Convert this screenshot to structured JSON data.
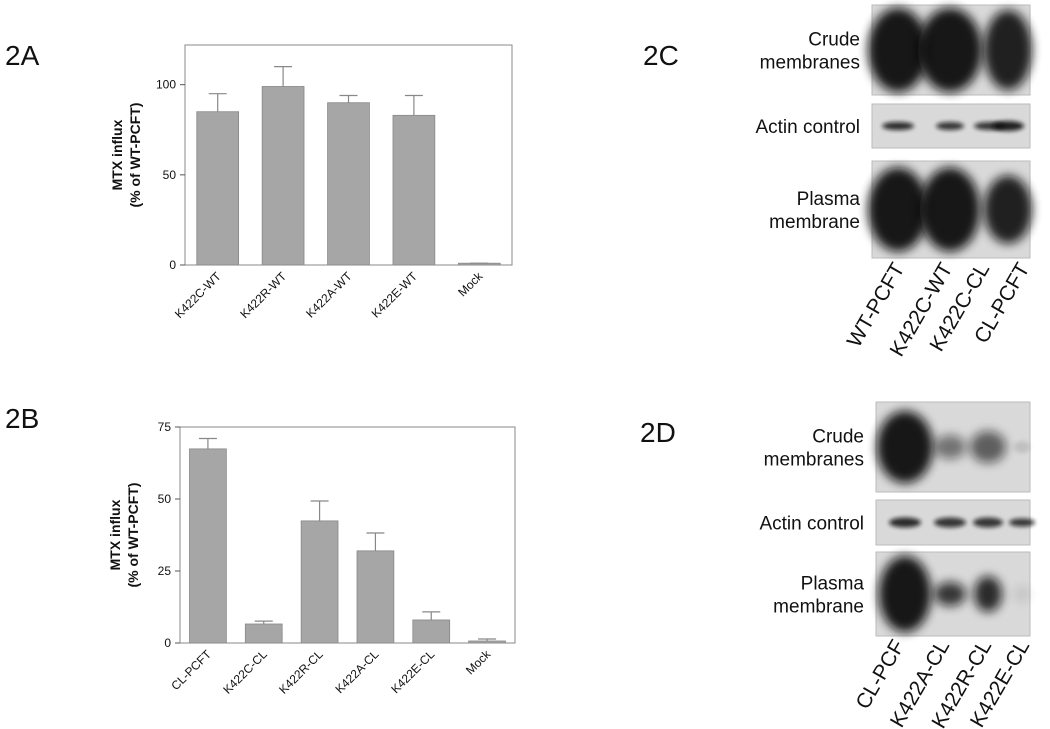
{
  "chart_data": [
    {
      "type": "bar",
      "panel": "2A",
      "y_label": [
        "MTX influx",
        "(% of WT-PCFT)"
      ],
      "categories": [
        "K422C-WT",
        "K422R-WT",
        "K422A-WT",
        "K422E-WT",
        "Mock"
      ],
      "values": [
        85,
        99,
        90,
        83,
        1
      ],
      "errors": [
        10,
        11,
        4,
        11,
        0
      ],
      "color": "#a6a6a6",
      "ylim": [
        0,
        122
      ],
      "yticks": [
        0,
        50,
        100
      ]
    },
    {
      "type": "bar",
      "panel": "2B",
      "y_label": [
        "MTX influx",
        "(% of WT-PCFT)"
      ],
      "categories": [
        "CL-PCFT",
        "K422C-CL",
        "K422R-CL",
        "K422A-CL",
        "K422E-CL",
        "Mock"
      ],
      "values": [
        67.4,
        6.6,
        42.4,
        32,
        8,
        0.7
      ],
      "errors": [
        3.6,
        1,
        6.9,
        6.2,
        2.8,
        0.7
      ],
      "color": "#a6a6a6",
      "ylim": [
        0,
        75
      ],
      "yticks": [
        0,
        25,
        50,
        75
      ]
    }
  ],
  "blots": [
    {
      "panel": "2C",
      "rows": [
        [
          "Crude",
          "membranes"
        ],
        [
          "Actin control"
        ],
        [
          "Plasma",
          "membrane"
        ]
      ],
      "lanes": [
        "WT-PCFT",
        "K422C-WT",
        "K422C-CL",
        "CL-PCFT"
      ]
    },
    {
      "panel": "2D",
      "rows": [
        [
          "Crude",
          "membranes"
        ],
        [
          "Actin control"
        ],
        [
          "Plasma",
          "membrane"
        ]
      ],
      "lanes": [
        "CL-PCF",
        "K422A-CL",
        "K422R-CL",
        "K422E-CL"
      ]
    }
  ]
}
